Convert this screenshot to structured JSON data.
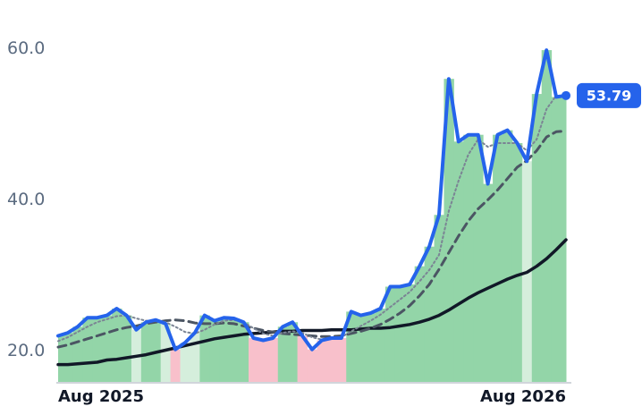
{
  "chart_data": {
    "type": "line",
    "x": [
      0,
      1,
      2,
      3,
      4,
      5,
      6,
      7,
      8,
      9,
      10,
      11,
      12,
      13,
      14,
      15,
      16,
      17,
      18,
      19,
      20,
      21,
      22,
      23,
      24,
      25,
      26,
      27,
      28,
      29,
      30,
      31,
      32,
      33,
      34,
      35,
      36,
      37,
      38,
      39,
      40,
      41,
      42,
      43,
      44,
      45,
      46,
      47,
      48,
      49,
      50,
      51,
      52
    ],
    "xlim": [
      0,
      52
    ],
    "xticks": [
      {
        "value": 0,
        "label": "Aug 2025"
      },
      {
        "value": 52,
        "label": "Aug 2026"
      }
    ],
    "ylim": [
      15.9,
      61.7
    ],
    "yticks": [
      {
        "value": 20,
        "label": "20.0"
      },
      {
        "value": 40,
        "label": "40.0"
      },
      {
        "value": 60,
        "label": "60.0"
      }
    ],
    "area_colors": {
      "above_both": "#93d5a8",
      "above_long": "#d5eedc",
      "below_both": "#f8c0cb",
      "below_long": "#fde0e6"
    },
    "series": [
      {
        "color": "#2563eb",
        "style": "solid",
        "width": 4,
        "values": [
          22.0,
          22.4,
          23.2,
          24.4,
          24.4,
          24.7,
          25.6,
          24.7,
          22.8,
          23.8,
          24.1,
          23.6,
          20.2,
          21.1,
          22.4,
          24.7,
          24.0,
          24.4,
          24.3,
          23.8,
          21.7,
          21.4,
          21.7,
          23.2,
          23.8,
          22.0,
          20.2,
          21.4,
          21.7,
          21.7,
          25.2,
          24.7,
          25.0,
          25.6,
          28.5,
          28.5,
          28.8,
          31.2,
          33.8,
          38.0,
          56.0,
          47.7,
          48.6,
          48.6,
          42.1,
          48.6,
          49.2,
          47.5,
          45.1,
          54.0,
          59.8,
          53.6,
          53.79
        ],
        "value_labels": [
          null,
          null,
          null,
          null,
          null,
          null,
          null,
          null,
          null,
          null,
          null,
          null,
          null,
          null,
          null,
          null,
          null,
          null,
          null,
          null,
          null,
          null,
          null,
          null,
          null,
          null,
          null,
          null,
          null,
          null,
          null,
          null,
          null,
          null,
          null,
          null,
          null,
          null,
          null,
          null,
          null,
          null,
          null,
          null,
          null,
          null,
          null,
          null,
          null,
          null,
          null,
          null,
          "53.79"
        ]
      },
      {
        "color": "#7b8494",
        "style": "dotted",
        "width": 2,
        "values": [
          21.3,
          21.8,
          22.5,
          23.2,
          23.8,
          24.2,
          24.6,
          24.7,
          24.3,
          24.0,
          24.0,
          23.8,
          23.2,
          22.5,
          22.3,
          22.8,
          23.5,
          24.0,
          24.1,
          23.8,
          23.0,
          22.3,
          22.0,
          22.4,
          22.6,
          22.4,
          21.8,
          21.5,
          21.6,
          21.8,
          22.6,
          23.3,
          24.0,
          24.8,
          25.8,
          26.8,
          27.8,
          29.2,
          30.7,
          32.7,
          38.5,
          42.5,
          46.0,
          48.0,
          47.0,
          47.5,
          47.5,
          47.5,
          46.5,
          48.0,
          52.0,
          53.8,
          53.5
        ]
      },
      {
        "color": "#4b5563",
        "style": "dashed",
        "width": 3,
        "values": [
          20.5,
          20.8,
          21.2,
          21.6,
          22.0,
          22.4,
          22.8,
          23.1,
          23.3,
          23.6,
          23.8,
          24.0,
          24.1,
          24.0,
          23.7,
          23.6,
          23.6,
          23.7,
          23.6,
          23.3,
          23.0,
          22.7,
          22.5,
          22.3,
          22.2,
          22.1,
          22.0,
          21.9,
          21.9,
          22.0,
          22.3,
          22.6,
          23.0,
          23.5,
          24.2,
          25.0,
          26.0,
          27.3,
          28.8,
          30.8,
          33.0,
          35.2,
          37.2,
          38.8,
          40.0,
          41.3,
          42.8,
          44.3,
          45.2,
          46.5,
          48.3,
          49.0,
          49.1
        ]
      },
      {
        "color": "#111827",
        "style": "solid",
        "width": 3.5,
        "values": [
          18.2,
          18.2,
          18.3,
          18.4,
          18.5,
          18.8,
          18.9,
          19.1,
          19.3,
          19.5,
          19.8,
          20.1,
          20.4,
          20.7,
          21.0,
          21.3,
          21.6,
          21.8,
          22.0,
          22.2,
          22.3,
          22.4,
          22.5,
          22.6,
          22.6,
          22.7,
          22.7,
          22.7,
          22.8,
          22.8,
          22.8,
          22.9,
          23.0,
          23.0,
          23.1,
          23.3,
          23.5,
          23.8,
          24.2,
          24.7,
          25.4,
          26.2,
          27.0,
          27.7,
          28.3,
          28.9,
          29.5,
          30.0,
          30.4,
          31.2,
          32.2,
          33.4,
          34.7
        ]
      }
    ]
  }
}
